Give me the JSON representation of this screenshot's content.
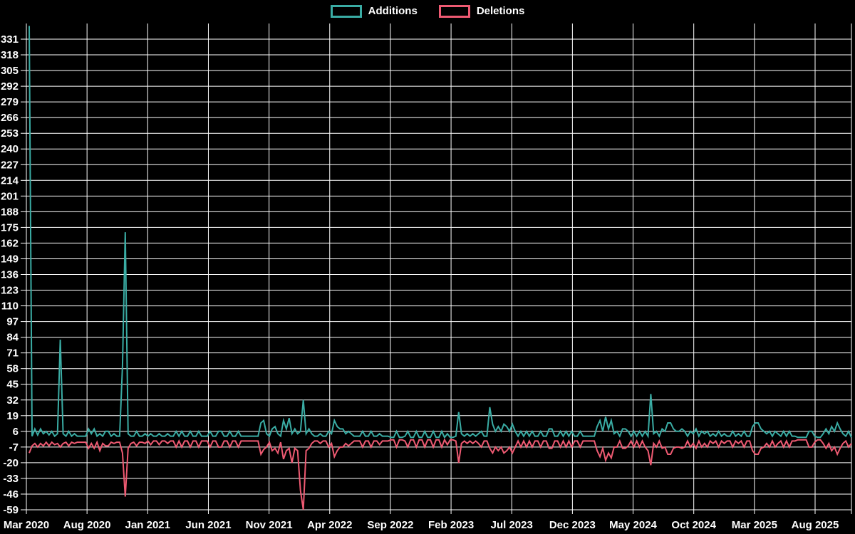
{
  "page": {
    "background": "#000000",
    "grid_color": "#ffffff"
  },
  "legend": {
    "position": "top-center",
    "items": [
      {
        "label": "Additions",
        "color": "#3aaca4"
      },
      {
        "label": "Deletions",
        "color": "#ee5a72"
      }
    ]
  },
  "chart_data": {
    "type": "line",
    "title": "",
    "xlabel": "",
    "ylabel": "",
    "grid": true,
    "x_unit": "week",
    "x_start": "Mar 2020",
    "x_end": "Oct 2025",
    "x_tick_labels": [
      "Mar 2020",
      "Aug 2020",
      "Jan 2021",
      "Jun 2021",
      "Nov 2021",
      "Apr 2022",
      "Sep 2022",
      "Feb 2023",
      "Jul 2023",
      "Dec 2023",
      "May 2024",
      "Oct 2024",
      "Mar 2025",
      "Aug 2025"
    ],
    "y_ticks": [
      331,
      318,
      305,
      292,
      279,
      266,
      253,
      240,
      227,
      214,
      201,
      188,
      175,
      162,
      149,
      136,
      123,
      110,
      97,
      84,
      71,
      58,
      45,
      32,
      19,
      6,
      -7,
      -20,
      -33,
      -46,
      -59
    ],
    "ylim": [
      -59,
      345
    ],
    "ytick_step": 13,
    "legend_position": "top-center",
    "series": [
      {
        "name": "Additions",
        "color": "#3aaca4",
        "values": [
          342,
          2,
          8,
          3,
          8,
          4,
          6,
          3,
          6,
          2,
          4,
          82,
          4,
          2,
          6,
          2,
          4,
          2,
          2,
          2,
          2,
          8,
          4,
          8,
          2,
          4,
          2,
          6,
          6,
          2,
          4,
          2,
          2,
          60,
          171,
          4,
          2,
          2,
          6,
          2,
          2,
          4,
          2,
          4,
          2,
          2,
          4,
          2,
          2,
          4,
          2,
          2,
          6,
          2,
          6,
          2,
          2,
          6,
          2,
          2,
          6,
          2,
          2,
          2,
          6,
          2,
          2,
          6,
          6,
          2,
          2,
          6,
          2,
          2,
          6,
          2,
          2,
          2,
          2,
          2,
          2,
          2,
          13,
          15,
          4,
          2,
          8,
          10,
          4,
          2,
          15,
          8,
          17,
          4,
          8,
          4,
          6,
          32,
          4,
          8,
          4,
          2,
          2,
          4,
          2,
          2,
          6,
          4,
          15,
          10,
          8,
          8,
          4,
          6,
          4,
          2,
          2,
          2,
          6,
          2,
          2,
          6,
          2,
          2,
          4,
          2,
          2,
          2,
          1,
          1,
          6,
          1,
          1,
          2,
          6,
          1,
          1,
          6,
          1,
          1,
          6,
          1,
          1,
          6,
          1,
          1,
          6,
          1,
          4,
          1,
          1,
          2,
          22,
          4,
          2,
          4,
          2,
          4,
          2,
          4,
          6,
          2,
          2,
          26,
          12,
          6,
          10,
          6,
          12,
          10,
          6,
          12,
          6,
          2,
          6,
          2,
          6,
          2,
          6,
          2,
          2,
          6,
          2,
          2,
          8,
          8,
          2,
          2,
          6,
          2,
          6,
          2,
          6,
          2,
          2,
          6,
          2,
          2,
          2,
          2,
          2,
          10,
          15,
          6,
          18,
          8,
          15,
          4,
          6,
          2,
          8,
          8,
          6,
          2,
          6,
          2,
          6,
          2,
          6,
          2,
          37,
          4,
          6,
          2,
          8,
          6,
          13,
          13,
          8,
          6,
          6,
          8,
          6,
          2,
          6,
          4,
          8,
          2,
          6,
          4,
          6,
          2,
          4,
          2,
          6,
          2,
          4,
          2,
          2,
          6,
          2,
          4,
          2,
          6,
          2,
          2,
          10,
          13,
          13,
          8,
          6,
          4,
          6,
          2,
          6,
          4,
          2,
          6,
          2,
          6,
          2,
          2,
          1,
          1,
          1,
          1,
          6,
          6,
          2,
          1,
          1,
          4,
          8,
          4,
          10,
          6,
          13,
          8,
          4,
          2,
          6,
          1
        ]
      },
      {
        "name": "Deletions",
        "color": "#ee5a72",
        "values": [
          -12,
          -6,
          -4,
          -7,
          -4,
          -6,
          -3,
          -6,
          -3,
          -5,
          -4,
          -7,
          -4,
          -3,
          -6,
          -3,
          -4,
          -3,
          -3,
          -3,
          -3,
          -8,
          -4,
          -8,
          -3,
          -10,
          -4,
          -6,
          -6,
          -3,
          -4,
          -3,
          -3,
          -12,
          -48,
          -8,
          -4,
          -3,
          -6,
          -3,
          -3,
          -4,
          -2,
          -5,
          -2,
          -2,
          -5,
          -2,
          -2,
          -4,
          -2,
          -2,
          -7,
          -2,
          -7,
          -2,
          -2,
          -7,
          -2,
          -2,
          -7,
          -2,
          -2,
          -2,
          -7,
          -2,
          -2,
          -7,
          -7,
          -2,
          -2,
          -7,
          -2,
          -2,
          -7,
          -2,
          -2,
          -2,
          -2,
          -2,
          -2,
          -2,
          -13,
          -9,
          -7,
          -3,
          -10,
          -8,
          -12,
          -3,
          -17,
          -10,
          -8,
          -20,
          -8,
          -10,
          -43,
          -59,
          -10,
          -8,
          -4,
          -2,
          -2,
          -4,
          -2,
          -2,
          -7,
          -4,
          -15,
          -10,
          -7,
          -7,
          -4,
          -6,
          -4,
          -2,
          -2,
          -2,
          -7,
          -2,
          -2,
          -7,
          -2,
          -2,
          -5,
          -2,
          -2,
          -2,
          -1,
          -1,
          -7,
          -1,
          -1,
          -2,
          -7,
          -1,
          -1,
          -7,
          -1,
          -1,
          -7,
          -1,
          -1,
          -7,
          -1,
          -1,
          -7,
          -1,
          -5,
          -1,
          -1,
          -2,
          -20,
          -4,
          -2,
          -4,
          -2,
          -4,
          -2,
          -4,
          -7,
          -2,
          -2,
          -8,
          -12,
          -7,
          -10,
          -7,
          -12,
          -10,
          -7,
          -12,
          -7,
          -2,
          -7,
          -2,
          -7,
          -2,
          -7,
          -2,
          -2,
          -7,
          -2,
          -2,
          -8,
          -8,
          -2,
          -2,
          -7,
          -2,
          -7,
          -2,
          -7,
          -2,
          -2,
          -7,
          -2,
          -2,
          -2,
          -2,
          -2,
          -10,
          -15,
          -8,
          -18,
          -12,
          -16,
          -7,
          -7,
          -2,
          -8,
          -8,
          -6,
          -2,
          -7,
          -2,
          -7,
          -2,
          -7,
          -10,
          -22,
          -4,
          -7,
          -2,
          -8,
          -7,
          -13,
          -13,
          -8,
          -7,
          -7,
          -8,
          -7,
          -2,
          -7,
          -4,
          -8,
          -2,
          -7,
          -4,
          -7,
          -2,
          -4,
          -2,
          -7,
          -2,
          -4,
          -2,
          -2,
          -7,
          -2,
          -4,
          -2,
          -7,
          -2,
          -2,
          -10,
          -13,
          -13,
          -8,
          -7,
          -4,
          -7,
          -2,
          -7,
          -4,
          -2,
          -7,
          -2,
          -7,
          -2,
          -2,
          -1,
          -1,
          -1,
          -1,
          -7,
          -7,
          -3,
          -1,
          -1,
          -4,
          -8,
          -4,
          -10,
          -7,
          -13,
          -8,
          -4,
          -2,
          -7,
          -4
        ]
      }
    ]
  }
}
